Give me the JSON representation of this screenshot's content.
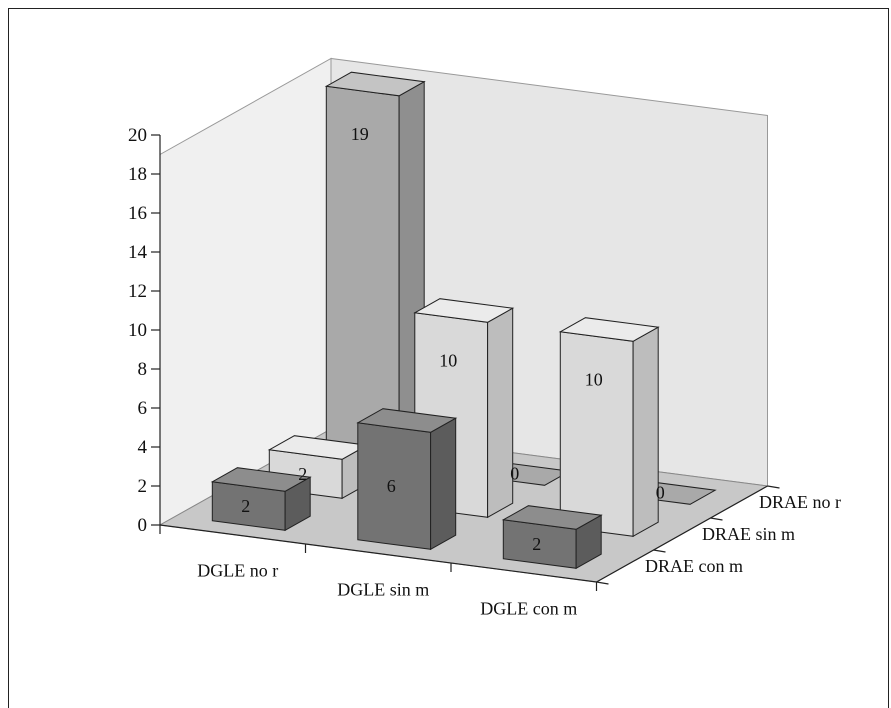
{
  "chart_data": {
    "type": "bar",
    "subtype": "3d-bar",
    "title": "",
    "xlabel": "",
    "ylabel": "",
    "ylim": [
      0,
      20
    ],
    "yticks": [
      "0",
      "2",
      "4",
      "6",
      "8",
      "10",
      "12",
      "14",
      "16",
      "18",
      "20"
    ],
    "categories": [
      "DGLE no r",
      "DGLE sin m",
      "DGLE con m"
    ],
    "depth_categories": [
      "DRAE no r",
      "DRAE sin m",
      "DRAE con m"
    ],
    "series": [
      {
        "name": "DRAE no r",
        "values": [
          19,
          0,
          0
        ],
        "value_labels": [
          "19",
          "0",
          "0"
        ]
      },
      {
        "name": "DRAE sin m",
        "values": [
          2,
          10,
          10
        ],
        "value_labels": [
          "2",
          "10",
          "10"
        ]
      },
      {
        "name": "DRAE con m",
        "values": [
          2,
          6,
          2
        ],
        "value_labels": [
          "2",
          "6",
          "2"
        ]
      }
    ],
    "grid": false,
    "legend": "none",
    "colors": {
      "DRAE no r": {
        "front": "#a9a9a9",
        "side": "#8f8f8f",
        "top": "#c4c4c4"
      },
      "DRAE sin m": {
        "front": "#d9d9d9",
        "side": "#bdbdbd",
        "top": "#ebebeb"
      },
      "DRAE con m": {
        "front": "#737373",
        "side": "#5c5c5c",
        "top": "#8d8d8d"
      },
      "back_wall": "#e6e6e6",
      "floor": "#c8c8c8"
    }
  }
}
